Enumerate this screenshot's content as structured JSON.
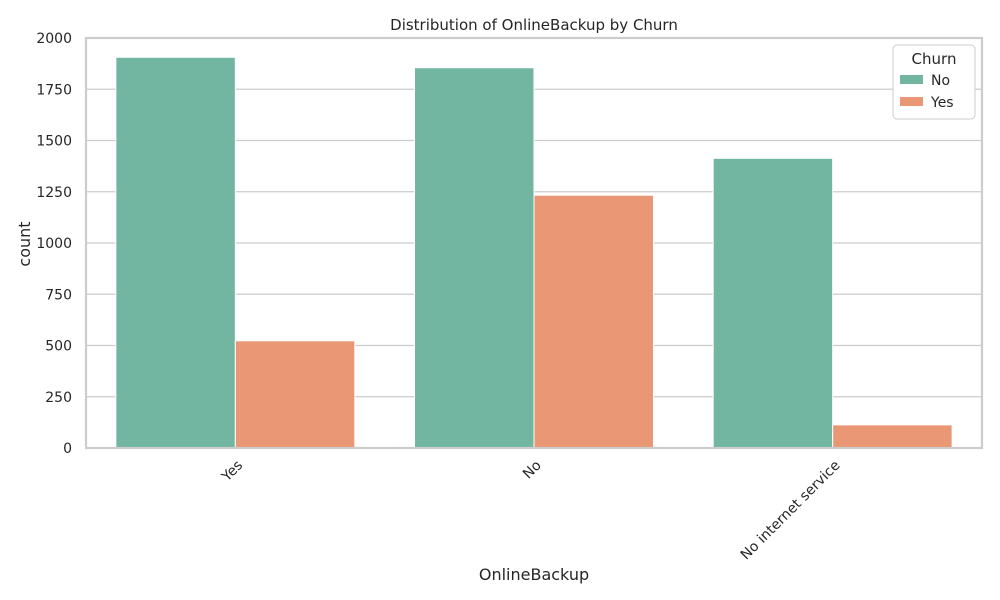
{
  "chart_data": {
    "type": "bar",
    "title": "Distribution of OnlineBackup by Churn",
    "xlabel": "OnlineBackup",
    "ylabel": "count",
    "categories": [
      "Yes",
      "No",
      "No internet service"
    ],
    "series": [
      {
        "name": "No",
        "color": "#72b5a0",
        "values": [
          1906,
          1855,
          1413
        ]
      },
      {
        "name": "Yes",
        "color": "#ea9775",
        "values": [
          523,
          1233,
          113
        ]
      }
    ],
    "ylim": [
      0,
      2000
    ],
    "yticks": [
      0,
      250,
      500,
      750,
      1000,
      1250,
      1500,
      1750,
      2000
    ],
    "grid": "horizontal",
    "legend": {
      "title": "Churn",
      "placement": "top-right"
    },
    "colors": {
      "grid": "#cccccc",
      "spine": "#cccccc",
      "text": "#262626",
      "background": "#ffffff"
    }
  }
}
